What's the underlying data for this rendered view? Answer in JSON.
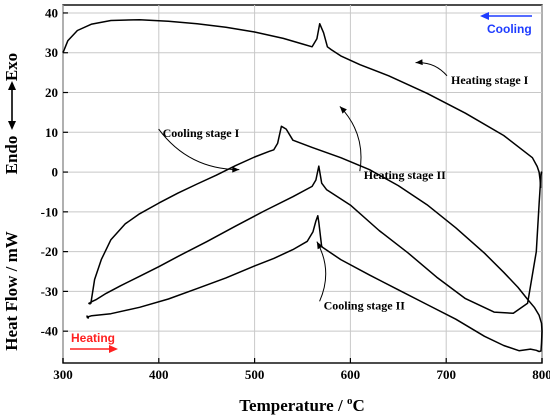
{
  "chart_data": {
    "type": "line",
    "xlabel": "Temperature / ",
    "xlabel_unit_sup": "o",
    "xlabel_unit": "C",
    "ylabel": "Heat Flow / mW",
    "exo_label": "Exo",
    "endo_label": "Endo",
    "xlim": [
      300,
      800
    ],
    "ylim": [
      -48,
      42
    ],
    "xticks": [
      300,
      400,
      500,
      600,
      700,
      800
    ],
    "yticks": [
      -40,
      -30,
      -20,
      -10,
      0,
      10,
      20,
      30,
      40
    ],
    "grid": true,
    "cooling_indicator": {
      "text": "Cooling",
      "color": "#1e3cff"
    },
    "heating_indicator": {
      "text": "Heating",
      "color": "#ff2020"
    },
    "exo_color": "#e02020",
    "endo_color": "#1030d0",
    "annotations": [
      {
        "text": "Heating stage I",
        "target": [
          668,
          27.5
        ],
        "text_pos": [
          705,
          22.2
        ]
      },
      {
        "text": "Heating stage II",
        "target": [
          589,
          16.5
        ],
        "text_pos": [
          614,
          -1.8
        ]
      },
      {
        "text": "Cooling stage I",
        "target": [
          484,
          0.6
        ],
        "text_pos": [
          404,
          8.8
        ]
      },
      {
        "text": "Cooling stage II",
        "target": [
          565,
          -17.5
        ],
        "text_pos": [
          572,
          -34.5
        ]
      }
    ],
    "series": [
      {
        "x": [
          300,
          305,
          315,
          330,
          350,
          380,
          410,
          440,
          470,
          500,
          530,
          550,
          560,
          565,
          568,
          572,
          576,
          580,
          590,
          610,
          640,
          680,
          720,
          760,
          790,
          795,
          797,
          798,
          798.5
        ],
        "y": [
          30,
          33,
          35.6,
          37.2,
          38.1,
          38.3,
          37.9,
          37.3,
          36.4,
          35.2,
          33.6,
          32.2,
          31.5,
          33.5,
          37.3,
          35,
          31.5,
          30.8,
          29.2,
          27,
          24.2,
          19.8,
          14.8,
          9.2,
          3.6,
          1.4,
          0,
          -2,
          -4
        ]
      },
      {
        "x": [
          798.5,
          799,
          799.5,
          799,
          797,
          794,
          785,
          770,
          750,
          720,
          690,
          660,
          630,
          600,
          575,
          570,
          567,
          564,
          560,
          540,
          510,
          480,
          450,
          420,
          400,
          380,
          360,
          345,
          335,
          330,
          328,
          327,
          327.5,
          329
        ],
        "y": [
          -4,
          -1,
          0,
          -0.5,
          -8,
          -20,
          -33,
          -35.5,
          -35.2,
          -31.8,
          -26.4,
          -20.3,
          -14.7,
          -8.3,
          -4.4,
          -2.8,
          1.5,
          -2,
          -3.6,
          -6.2,
          -9.8,
          -13.6,
          -17.5,
          -21.2,
          -23.8,
          -26.2,
          -28.6,
          -30.5,
          -32,
          -32.6,
          -32.9,
          -33,
          -33.1,
          -33.1
        ]
      },
      {
        "x": [
          329,
          333,
          340,
          350,
          365,
          380,
          400,
          420,
          440,
          460,
          480,
          500,
          515,
          520,
          524,
          528,
          533,
          540,
          560,
          590,
          620,
          650,
          680,
          710,
          740,
          760,
          775,
          785,
          792,
          797,
          799.5,
          800,
          799.5,
          799,
          798.5
        ],
        "y": [
          -33.1,
          -27,
          -22,
          -17,
          -13,
          -10.5,
          -7.8,
          -5.3,
          -3,
          -0.8,
          1.6,
          3.8,
          5.2,
          5.6,
          7.2,
          11.5,
          10.8,
          8,
          6.2,
          3.6,
          0.6,
          -3.4,
          -8.2,
          -14,
          -20.4,
          -25.2,
          -29,
          -32,
          -34,
          -36,
          -38,
          -40,
          -43,
          -45,
          -45
        ]
      },
      {
        "x": [
          798.5,
          797,
          794,
          788,
          776,
          760,
          740,
          710,
          680,
          650,
          620,
          590,
          570,
          567,
          566,
          564,
          561,
          555,
          540,
          520,
          500,
          470,
          440,
          410,
          380,
          350,
          330,
          326,
          325,
          325.5,
          327
        ],
        "y": [
          -45,
          -45.1,
          -44.8,
          -44.5,
          -44.9,
          -43.6,
          -41.3,
          -37,
          -33.3,
          -29.6,
          -25.9,
          -22,
          -18.8,
          -12.6,
          -11,
          -12.3,
          -15,
          -17.4,
          -19.5,
          -21.7,
          -23.6,
          -26.6,
          -29.3,
          -31.9,
          -34,
          -35.6,
          -36.1,
          -36.4,
          -36.2,
          -36.6,
          -36.7
        ]
      }
    ]
  }
}
